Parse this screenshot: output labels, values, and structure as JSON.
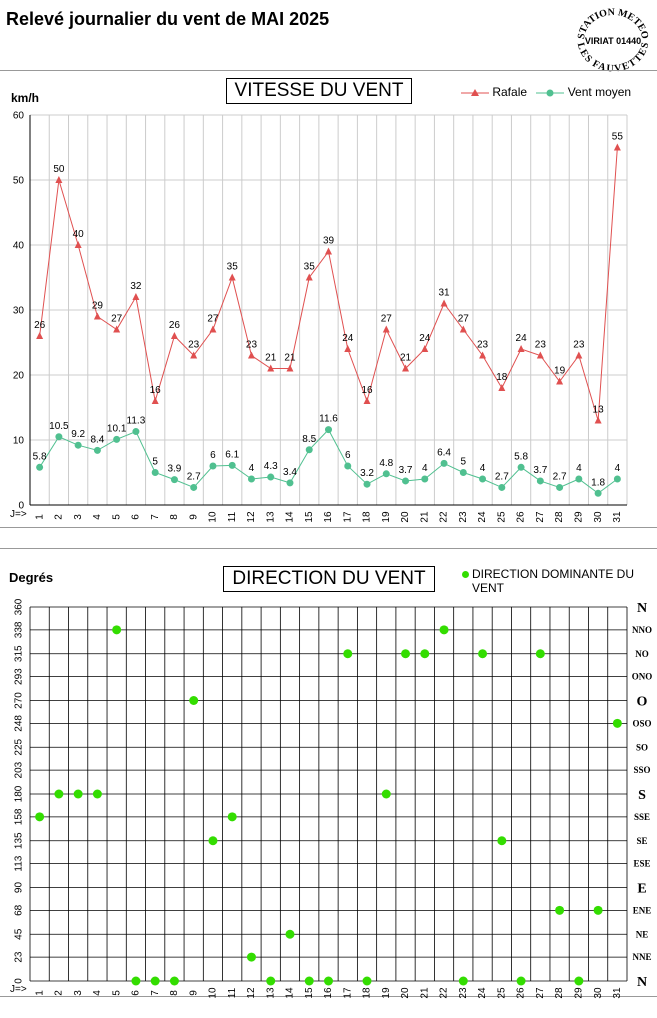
{
  "page": {
    "title": "Relevé journalier du vent de MAI 2025",
    "stamp": {
      "top": "STATION METEO",
      "middle": "VIRIAT 01440",
      "bottom": "LES FAUVETTES"
    }
  },
  "speed_chart": {
    "title": "VITESSE DU VENT",
    "unit": "km/h",
    "day_axis_prefix": "J=>",
    "legend": [
      {
        "name": "Rafale",
        "color": "#e05050"
      },
      {
        "name": "Vent moyen",
        "color": "#50c090"
      }
    ]
  },
  "direction_chart": {
    "title": "DIRECTION DU VENT",
    "unit": "Degrés",
    "day_axis_prefix": "J=>",
    "legend_label_1": "DIRECTION DOMINANTE DU",
    "legend_label_2": "VENT",
    "point_color": "#33dd00"
  },
  "chart_data": [
    {
      "type": "line",
      "title": "VITESSE DU VENT",
      "ylabel": "km/h",
      "ylim": [
        0,
        60
      ],
      "yticks": [
        0,
        10,
        20,
        30,
        40,
        50,
        60
      ],
      "grid": true,
      "legend_position": "top-right",
      "x": [
        1,
        2,
        3,
        4,
        5,
        6,
        7,
        8,
        9,
        10,
        11,
        12,
        13,
        14,
        15,
        16,
        17,
        18,
        19,
        20,
        21,
        22,
        23,
        24,
        25,
        26,
        27,
        28,
        29,
        30,
        31
      ],
      "series": [
        {
          "name": "Rafale",
          "color": "#e05050",
          "marker": "triangle",
          "values": [
            26,
            50,
            40,
            29,
            27,
            32,
            16,
            26,
            23,
            27,
            35,
            23,
            21,
            21,
            35,
            39,
            24,
            16,
            27,
            21,
            24,
            31,
            27,
            23,
            18,
            24,
            23,
            19,
            23,
            13,
            55
          ]
        },
        {
          "name": "Vent moyen",
          "color": "#50c090",
          "marker": "circle",
          "values": [
            5.8,
            10.5,
            9.2,
            8.4,
            10.1,
            11.3,
            5,
            3.9,
            2.7,
            6,
            6.1,
            4,
            4.3,
            3.4,
            8.5,
            11.6,
            6,
            3.2,
            4.8,
            3.7,
            4,
            6.4,
            5,
            4,
            2.7,
            5.8,
            3.7,
            2.7,
            4,
            1.8,
            4
          ]
        }
      ]
    },
    {
      "type": "scatter",
      "title": "DIRECTION DU VENT",
      "ylabel": "Degrés",
      "ylim": [
        0,
        360
      ],
      "yticks": [
        0,
        23,
        45,
        68,
        90,
        113,
        135,
        158,
        180,
        203,
        225,
        248,
        270,
        293,
        315,
        338,
        360
      ],
      "direction_labels": [
        "N",
        "NNE",
        "NE",
        "ENE",
        "E",
        "ESE",
        "SE",
        "SSE",
        "S",
        "SSO",
        "SO",
        "OSO",
        "O",
        "ONO",
        "NO",
        "NNO",
        "N"
      ],
      "grid": true,
      "legend_position": "top-right",
      "x": [
        1,
        2,
        3,
        4,
        5,
        6,
        7,
        8,
        9,
        10,
        11,
        12,
        13,
        14,
        15,
        16,
        17,
        18,
        19,
        20,
        21,
        22,
        23,
        24,
        25,
        26,
        27,
        28,
        29,
        30,
        31
      ],
      "series": [
        {
          "name": "DIRECTION DOMINANTE DU VENT",
          "color": "#33dd00",
          "values": [
            158,
            180,
            180,
            180,
            338,
            0,
            0,
            0,
            270,
            135,
            158,
            23,
            0,
            45,
            0,
            0,
            315,
            0,
            180,
            315,
            315,
            338,
            0,
            315,
            135,
            0,
            315,
            68,
            0,
            68,
            248
          ]
        }
      ]
    }
  ]
}
